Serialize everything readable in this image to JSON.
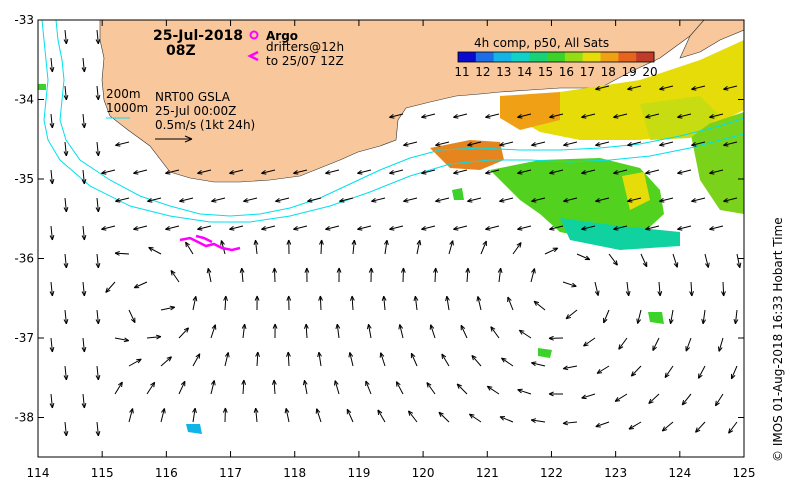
{
  "title": {
    "date": "25-Jul-2018",
    "time": "08Z"
  },
  "legend": {
    "argo_label": "Argo",
    "drifters_line1": "drifters@12h",
    "drifters_line2": "to 25/07 12Z",
    "contour_200": "200m",
    "contour_1000": "1000m",
    "gsla_line1": "NRT00 GSLA",
    "gsla_line2": "25-Jul 00:00Z",
    "scale_text": "0.5m/s (1kt 24h)"
  },
  "colorbar": {
    "title": "4h comp, p50, All Sats",
    "ticks": [
      "11",
      "12",
      "13",
      "14",
      "15",
      "16",
      "17",
      "18",
      "19",
      "20"
    ],
    "colors": [
      "#0a0ad0",
      "#1e6ee8",
      "#14b4e6",
      "#10d2c8",
      "#18d278",
      "#3cd22a",
      "#96dc14",
      "#e6dc0a",
      "#f0a014",
      "#e6641e",
      "#c03c28"
    ]
  },
  "axes": {
    "x_ticks": [
      "114",
      "115",
      "116",
      "117",
      "118",
      "119",
      "120",
      "121",
      "122",
      "123",
      "124",
      "125"
    ],
    "y_ticks": [
      "-33",
      "-34",
      "-35",
      "-36",
      "-37",
      "-38"
    ]
  },
  "credit": "© IMOS 01-Aug-2018 16:33 Hobart Time",
  "colors": {
    "land": "#f8c89c",
    "contour": "#00e0ec",
    "drifter": "#ff00ff",
    "arrow": "#000000"
  }
}
